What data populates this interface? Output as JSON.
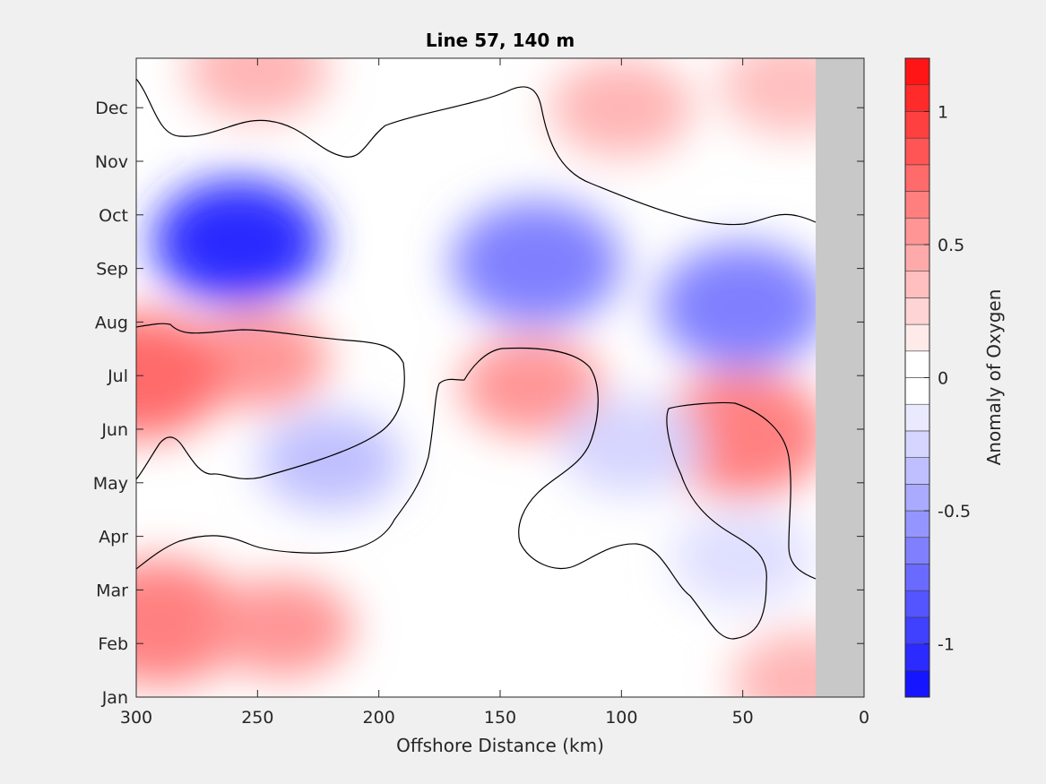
{
  "chart_data": {
    "type": "heatmap",
    "subtype": "filled-contour",
    "title": "Line 57, 140 m",
    "xlabel": "Offshore Distance (km)",
    "ylabel": "",
    "colorbar_label": "Anomaly of Oxygen",
    "x_axis_reversed": true,
    "xlim": [
      0,
      300
    ],
    "x_ticks": [
      300,
      250,
      200,
      150,
      100,
      50,
      0
    ],
    "y_ticks": [
      "Jan",
      "Feb",
      "Mar",
      "Apr",
      "May",
      "Jun",
      "Jul",
      "Aug",
      "Sep",
      "Oct",
      "Nov",
      "Dec"
    ],
    "clim": [
      -1.2,
      1.2
    ],
    "colorbar_ticks": [
      1,
      0.5,
      0,
      -0.5,
      -1
    ],
    "contour_interval": 0.1,
    "no_data_region_km": [
      0,
      20
    ],
    "no_data_color": "#c8c8c8",
    "colormap": {
      "negative": "#0000ff",
      "zero": "#ffffff",
      "positive": "#ff0000"
    },
    "zero_contour_color": "#000000",
    "features": [
      {
        "x": 258,
        "y": 8.5,
        "value": -1.0
      },
      {
        "x": 135,
        "y": 8.1,
        "value": -0.6
      },
      {
        "x": 50,
        "y": 7.3,
        "value": -0.6
      },
      {
        "x": 250,
        "y": 6.3,
        "value": 0.5
      },
      {
        "x": 298,
        "y": 6.0,
        "value": 0.7
      },
      {
        "x": 137,
        "y": 5.8,
        "value": 0.5
      },
      {
        "x": 50,
        "y": 4.9,
        "value": 0.6
      },
      {
        "x": 290,
        "y": 1.4,
        "value": 0.6
      },
      {
        "x": 240,
        "y": 1.3,
        "value": 0.5
      },
      {
        "x": 220,
        "y": 4.4,
        "value": -0.3
      },
      {
        "x": 96,
        "y": 4.7,
        "value": -0.2
      },
      {
        "x": 50,
        "y": 2.6,
        "value": -0.15
      },
      {
        "x": 100,
        "y": 11.0,
        "value": 0.35
      },
      {
        "x": 250,
        "y": 11.7,
        "value": 0.35
      },
      {
        "x": 30,
        "y": 11.4,
        "value": 0.3
      },
      {
        "x": 25,
        "y": 0.3,
        "value": 0.35
      }
    ]
  }
}
